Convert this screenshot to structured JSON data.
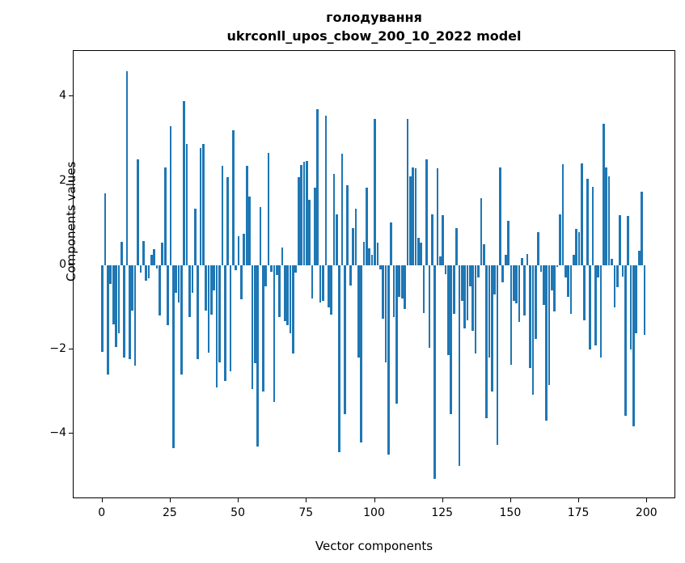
{
  "chart_data": {
    "type": "bar",
    "title": "голодування",
    "subtitle": "ukrconll_upos_cbow_200_10_2022 model",
    "xlabel": "Vector components",
    "ylabel": "Components values",
    "bar_color": "#1f77b4",
    "n_components": 200,
    "x_range": [
      0,
      199
    ],
    "ylim": [
      -5.55,
      5.08
    ],
    "xlim": [
      -10.6,
      210.6
    ],
    "grid": false,
    "legend": "none",
    "xticks": [
      0,
      25,
      50,
      75,
      100,
      125,
      150,
      175,
      200
    ],
    "xtick_labels": [
      "0",
      "25",
      "50",
      "75",
      "100",
      "125",
      "150",
      "175",
      "200"
    ],
    "yticks": [
      4,
      2,
      0,
      -2,
      -4
    ],
    "ytick_labels": [
      "4",
      "2",
      "0",
      "−2",
      "−4"
    ],
    "values": [
      -2.05,
      1.71,
      -2.6,
      -0.45,
      -1.4,
      -1.95,
      -1.62,
      0.56,
      -2.2,
      4.6,
      -2.23,
      -1.08,
      -2.39,
      2.5,
      -0.18,
      0.57,
      -0.37,
      -0.31,
      0.24,
      0.37,
      -0.08,
      -1.2,
      0.53,
      2.32,
      -1.43,
      3.3,
      -4.35,
      -0.65,
      -0.88,
      -2.6,
      3.9,
      2.88,
      -1.24,
      -0.66,
      1.33,
      -2.23,
      2.77,
      2.87,
      -1.08,
      -2.07,
      -1.17,
      -0.6,
      -2.9,
      -2.3,
      2.35,
      -2.74,
      2.08,
      -2.52,
      3.2,
      -0.12,
      0.69,
      -0.82,
      0.74,
      2.35,
      1.63,
      -2.95,
      -2.33,
      -4.3,
      1.37,
      -3.0,
      -0.5,
      2.67,
      -0.15,
      -3.24,
      -0.24,
      -1.24,
      0.41,
      -1.33,
      -1.43,
      -1.62,
      -2.1,
      -0.18,
      2.08,
      2.38,
      2.45,
      2.48,
      1.55,
      -0.79,
      1.84,
      3.7,
      -0.88,
      -0.84,
      3.54,
      -1.01,
      -1.17,
      2.16,
      1.2,
      -4.44,
      2.64,
      -3.54,
      1.9,
      -0.48,
      0.88,
      1.33,
      -2.2,
      -4.2,
      0.56,
      1.84,
      0.4,
      0.25,
      3.47,
      0.54,
      -0.1,
      -1.27,
      -2.3,
      -4.5,
      1.01,
      -1.24,
      -3.29,
      -0.76,
      -0.79,
      -1.04,
      3.47,
      2.1,
      2.32,
      2.3,
      0.65,
      0.53,
      -1.14,
      2.51,
      -1.97,
      1.2,
      -5.07,
      2.29,
      0.21,
      1.18,
      -0.22,
      -2.13,
      -3.54,
      -1.15,
      0.88,
      -4.76,
      -0.85,
      -1.5,
      -1.3,
      -0.5,
      -1.55,
      -2.1,
      -0.3,
      1.58,
      0.49,
      -3.64,
      -2.2,
      -3.0,
      -0.7,
      -4.27,
      2.32,
      -0.4,
      0.25,
      1.05,
      -2.36,
      -0.85,
      -0.9,
      -1.35,
      0.17,
      -1.2,
      0.26,
      -2.45,
      -3.08,
      -1.75,
      0.78,
      -0.15,
      -0.95,
      -3.69,
      -2.84,
      -0.6,
      -1.1,
      -0.05,
      1.2,
      2.4,
      -0.3,
      -0.75,
      -1.15,
      0.25,
      0.85,
      0.78,
      2.42,
      -1.3,
      2.05,
      -2.0,
      1.85,
      -1.9,
      -0.3,
      -2.2,
      3.35,
      2.32,
      2.11,
      0.14,
      -1.01,
      -0.53,
      1.19,
      -0.28,
      -3.58,
      1.17,
      -2.0,
      -3.83,
      -1.62,
      0.35,
      1.74,
      -1.65
    ]
  }
}
